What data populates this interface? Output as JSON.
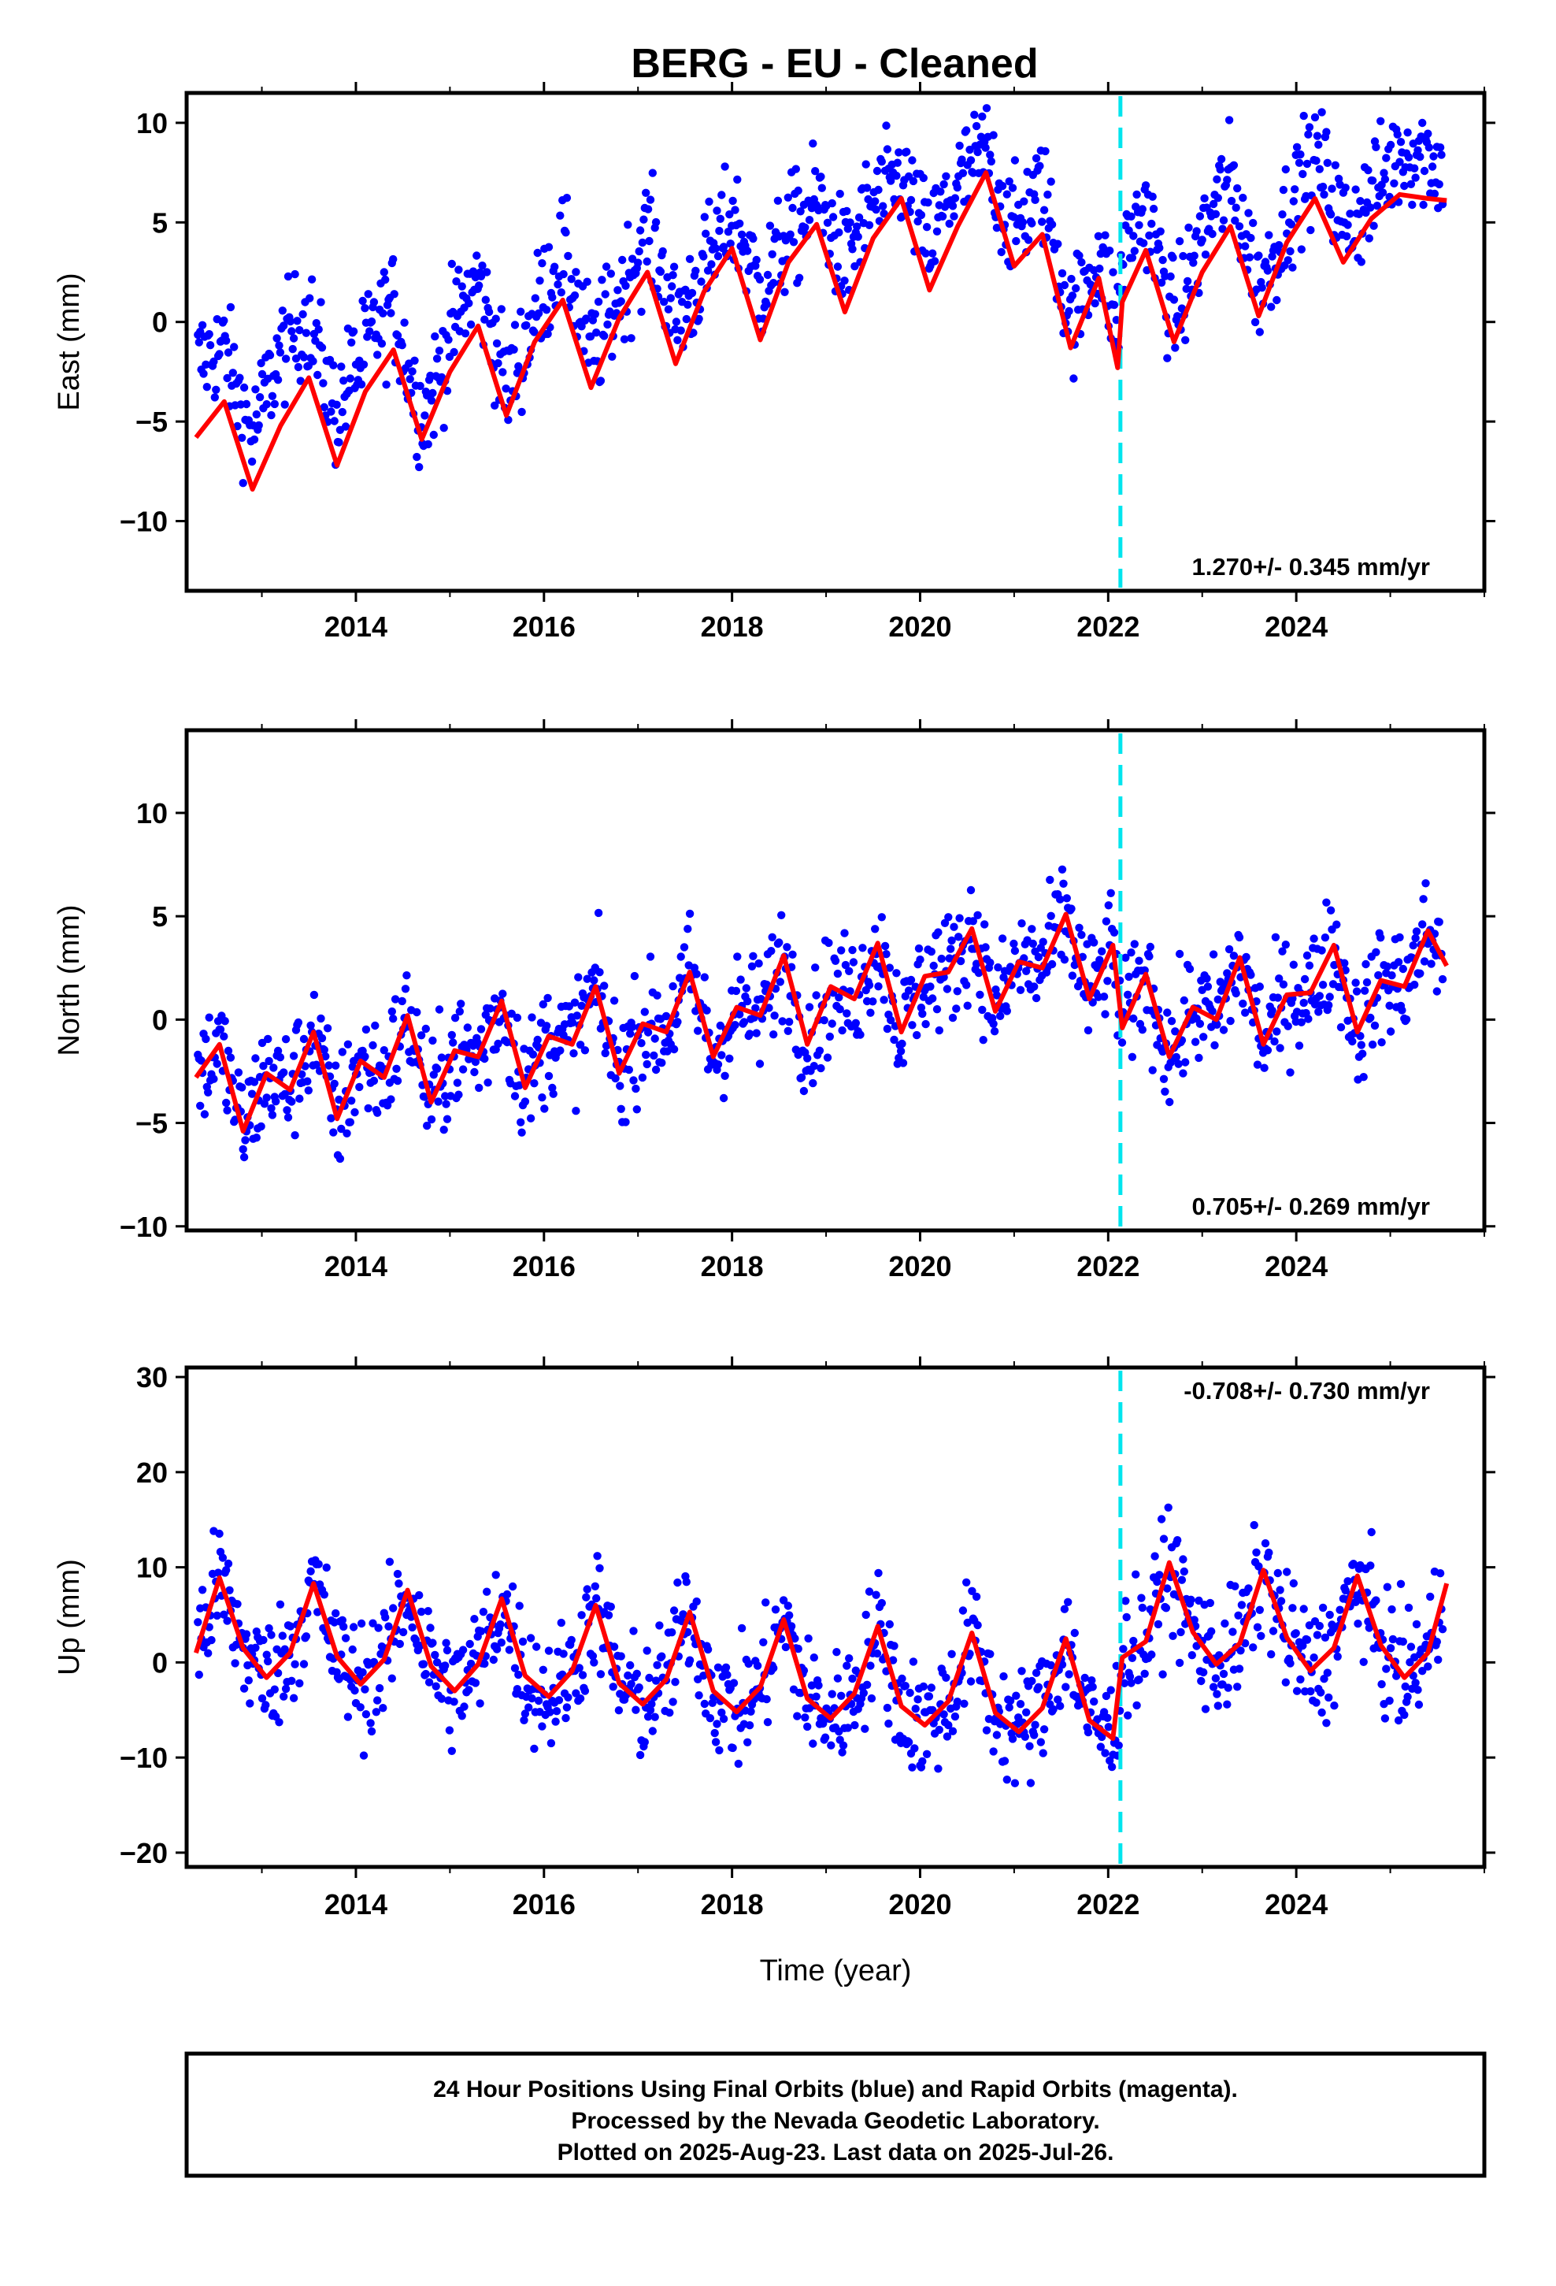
{
  "chart_data": {
    "title": "BERG  - EU - Cleaned",
    "type": "scatter",
    "xlabel": "Time (year)",
    "xlim": [
      2012.2,
      2026.0
    ],
    "xticks": [
      2014,
      2016,
      2018,
      2020,
      2022,
      2024
    ],
    "discontinuity_x": 2022.13,
    "colors": {
      "observations": "#0000ff",
      "model": "#ff0000",
      "discontinuity": "#00e5ee"
    },
    "panels": [
      {
        "id": "east",
        "ylabel": "East (mm)",
        "ylim": [
          -13.5,
          11.5
        ],
        "yticks": [
          -10,
          -5,
          0,
          5,
          10
        ],
        "rate_label": "1.270+/- 0.345 mm/yr",
        "rate_position": "bottom-right",
        "model_series": {
          "name": "",
          "x": [
            2012.3,
            2012.6,
            2012.9,
            2013.2,
            2013.5,
            2013.8,
            2014.1,
            2014.4,
            2014.7,
            2015.0,
            2015.3,
            2015.6,
            2015.9,
            2016.2,
            2016.5,
            2016.8,
            2017.1,
            2017.4,
            2017.7,
            2018.0,
            2018.3,
            2018.6,
            2018.9,
            2019.2,
            2019.5,
            2019.8,
            2020.1,
            2020.4,
            2020.7,
            2021.0,
            2021.3,
            2021.6,
            2021.9,
            2022.1,
            2022.15,
            2022.4,
            2022.7,
            2023.0,
            2023.3,
            2023.6,
            2023.9,
            2024.2,
            2024.5,
            2024.8,
            2025.1,
            2025.4,
            2025.6
          ],
          "y": [
            -5.8,
            -4.0,
            -8.4,
            -5.2,
            -2.8,
            -7.2,
            -3.5,
            -1.4,
            -5.9,
            -2.5,
            -0.2,
            -4.7,
            -1.0,
            1.1,
            -3.3,
            0.2,
            2.5,
            -2.1,
            1.5,
            3.7,
            -0.9,
            3.0,
            4.9,
            0.5,
            4.2,
            6.2,
            1.6,
            4.8,
            7.5,
            2.8,
            4.4,
            -1.3,
            2.2,
            -2.3,
            1.0,
            3.6,
            -1.0,
            2.5,
            4.8,
            0.3,
            4.0,
            6.2,
            3.0,
            5.2,
            6.4,
            6.2,
            6.1
          ]
        },
        "observations_note": "Daily positions (blue dots), 2012.3–2025.6, scatter approx. ±3 mm around model"
      },
      {
        "id": "north",
        "ylabel": "North (mm)",
        "ylim": [
          -10.2,
          14
        ],
        "yticks": [
          -10,
          -5,
          0,
          5,
          10
        ],
        "rate_label": "0.705+/- 0.269 mm/yr",
        "rate_position": "bottom-right",
        "model_series": {
          "name": "",
          "x": [
            2012.3,
            2012.55,
            2012.8,
            2013.05,
            2013.3,
            2013.55,
            2013.8,
            2014.05,
            2014.3,
            2014.55,
            2014.8,
            2015.05,
            2015.3,
            2015.55,
            2015.8,
            2016.05,
            2016.3,
            2016.55,
            2016.8,
            2017.05,
            2017.3,
            2017.55,
            2017.8,
            2018.05,
            2018.3,
            2018.55,
            2018.8,
            2019.05,
            2019.3,
            2019.55,
            2019.8,
            2020.05,
            2020.3,
            2020.55,
            2020.8,
            2021.05,
            2021.3,
            2021.55,
            2021.8,
            2022.05,
            2022.15,
            2022.4,
            2022.65,
            2022.9,
            2023.15,
            2023.4,
            2023.65,
            2023.9,
            2024.15,
            2024.4,
            2024.65,
            2024.9,
            2025.15,
            2025.4,
            2025.6
          ],
          "y": [
            -2.8,
            -1.2,
            -5.4,
            -2.6,
            -3.4,
            -0.6,
            -4.8,
            -2.0,
            -2.8,
            0.2,
            -4.0,
            -1.5,
            -1.8,
            0.9,
            -3.3,
            -0.8,
            -1.2,
            1.6,
            -2.6,
            -0.2,
            -0.6,
            2.3,
            -1.8,
            0.6,
            0.2,
            3.1,
            -1.2,
            1.6,
            1.0,
            3.7,
            -0.6,
            2.1,
            2.3,
            4.4,
            0.4,
            2.8,
            2.5,
            5.1,
            1.0,
            3.6,
            -0.4,
            2.2,
            -1.8,
            0.6,
            0.0,
            3.0,
            -1.2,
            1.2,
            1.3,
            3.6,
            -0.6,
            1.9,
            1.6,
            4.3,
            2.6
          ]
        },
        "observations_note": "Daily positions (blue dots), outlier clusters near 2015.2 and 2020.2"
      },
      {
        "id": "up",
        "ylabel": "Up (mm)",
        "ylim": [
          -21.5,
          31
        ],
        "yticks": [
          -20,
          -10,
          0,
          10,
          20,
          30
        ],
        "rate_label": "-0.708+/- 0.730 mm/yr",
        "rate_position": "top-right",
        "model_series": {
          "name": "",
          "x": [
            2012.3,
            2012.55,
            2012.8,
            2013.05,
            2013.3,
            2013.55,
            2013.8,
            2014.05,
            2014.3,
            2014.55,
            2014.8,
            2015.05,
            2015.3,
            2015.55,
            2015.8,
            2016.05,
            2016.3,
            2016.55,
            2016.8,
            2017.05,
            2017.3,
            2017.55,
            2017.8,
            2018.05,
            2018.3,
            2018.55,
            2018.8,
            2019.05,
            2019.3,
            2019.55,
            2019.8,
            2020.05,
            2020.3,
            2020.55,
            2020.8,
            2021.05,
            2021.3,
            2021.55,
            2021.8,
            2022.05,
            2022.15,
            2022.4,
            2022.65,
            2022.9,
            2023.15,
            2023.4,
            2023.65,
            2023.9,
            2024.15,
            2024.4,
            2024.65,
            2024.9,
            2025.15,
            2025.4,
            2025.6
          ],
          "y": [
            1.0,
            8.9,
            1.5,
            -1.6,
            1.0,
            8.3,
            0.6,
            -2.3,
            0.3,
            7.6,
            -0.4,
            -3.0,
            -0.2,
            6.7,
            -1.4,
            -3.6,
            -0.9,
            6.0,
            -2.2,
            -4.4,
            -1.8,
            5.3,
            -3.0,
            -5.2,
            -2.6,
            4.5,
            -3.8,
            -5.9,
            -3.3,
            3.8,
            -4.6,
            -6.6,
            -4.1,
            3.1,
            -5.3,
            -7.3,
            -4.8,
            2.5,
            -6.1,
            -8.0,
            0.5,
            2.2,
            10.5,
            3.2,
            -0.2,
            2.0,
            9.7,
            2.6,
            -0.9,
            1.5,
            9.1,
            1.8,
            -1.6,
            1.0,
            8.3
          ]
        },
        "observations_note": "Daily positions (blue dots), strong annual cycle, scatter approx. ±6 mm"
      }
    ],
    "footer": {
      "line1": "24 Hour Positions Using Final Orbits (blue) and Rapid Orbits (magenta).",
      "line2": "Processed by the Nevada Geodetic Laboratory.",
      "line3": "Plotted on 2025-Aug-23. Last data on 2025-Jul-26."
    }
  }
}
